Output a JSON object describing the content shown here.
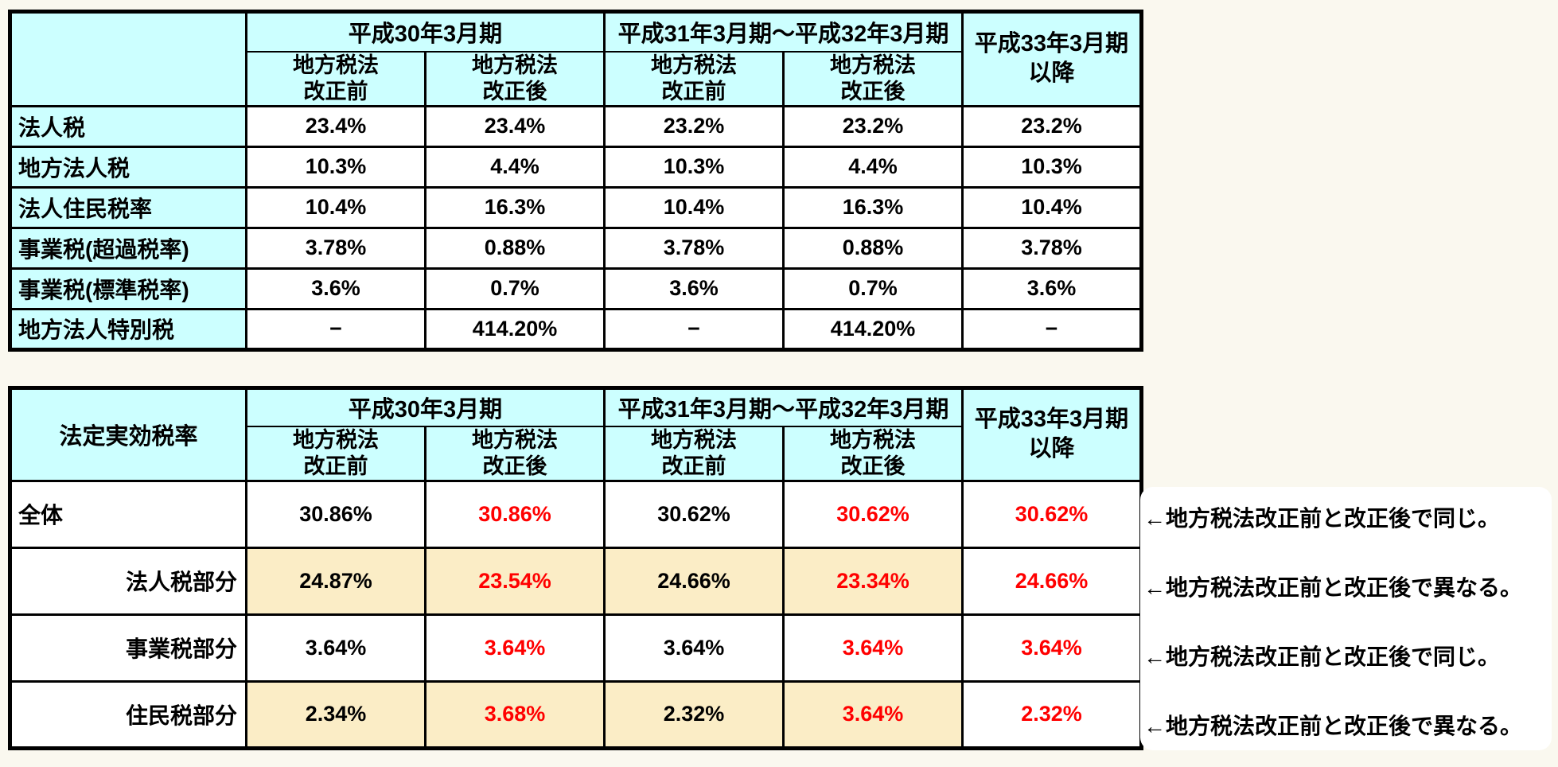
{
  "colors": {
    "page_background": "#FAF8EF",
    "header_fill": "#CCFFFF",
    "highlight_fill": "#FBEDC6",
    "changed_value_text": "#FF0000",
    "normal_text": "#000000",
    "grid_border": "#000000",
    "note_panel_fill": "#FFFFFF"
  },
  "chart_data": [
    {
      "type": "table",
      "corner_label": "",
      "groups": [
        {
          "label": "平成30年3月期",
          "subs": [
            "地方税法\n改正前",
            "地方税法\n改正後"
          ]
        },
        {
          "label": "平成31年3月期～平成32年3月期",
          "subs": [
            "地方税法\n改正前",
            "地方税法\n改正後"
          ]
        }
      ],
      "last_col_label": "平成33年3月期\n以降",
      "rows": [
        {
          "label": "法人税",
          "values": [
            "23.4%",
            "23.4%",
            "23.2%",
            "23.2%",
            "23.2%"
          ]
        },
        {
          "label": "地方法人税",
          "values": [
            "10.3%",
            "4.4%",
            "10.3%",
            "4.4%",
            "10.3%"
          ]
        },
        {
          "label": "法人住民税率",
          "values": [
            "10.4%",
            "16.3%",
            "10.4%",
            "16.3%",
            "10.4%"
          ]
        },
        {
          "label": "事業税(超過税率)",
          "values": [
            "3.78%",
            "0.88%",
            "3.78%",
            "0.88%",
            "3.78%"
          ]
        },
        {
          "label": "事業税(標準税率)",
          "values": [
            "3.6%",
            "0.7%",
            "3.6%",
            "0.7%",
            "3.6%"
          ]
        },
        {
          "label": "地方法人特別税",
          "values": [
            "−",
            "414.20%",
            "−",
            "414.20%",
            "−"
          ]
        }
      ]
    },
    {
      "type": "table",
      "corner_label": "法定実効税率",
      "groups": [
        {
          "label": "平成30年3月期",
          "subs": [
            "地方税法\n改正前",
            "地方税法\n改正後"
          ]
        },
        {
          "label": "平成31年3月期～平成32年3月期",
          "subs": [
            "地方税法\n改正前",
            "地方税法\n改正後"
          ]
        }
      ],
      "last_col_label": "平成33年3月期\n以降",
      "rows": [
        {
          "label": "全体",
          "align": "left",
          "cells": [
            {
              "t": "30.86%",
              "red": false,
              "hl": false
            },
            {
              "t": "30.86%",
              "red": true,
              "hl": false
            },
            {
              "t": "30.62%",
              "red": false,
              "hl": false
            },
            {
              "t": "30.62%",
              "red": true,
              "hl": false
            },
            {
              "t": "30.62%",
              "red": true,
              "hl": false
            }
          ],
          "note": "←地方税法改正前と改正後で同じ。"
        },
        {
          "label": "法人税部分",
          "align": "right",
          "cells": [
            {
              "t": "24.87%",
              "red": false,
              "hl": true
            },
            {
              "t": "23.54%",
              "red": true,
              "hl": true
            },
            {
              "t": "24.66%",
              "red": false,
              "hl": true
            },
            {
              "t": "23.34%",
              "red": true,
              "hl": true
            },
            {
              "t": "24.66%",
              "red": true,
              "hl": false
            }
          ],
          "note": "←地方税法改正前と改正後で異なる。"
        },
        {
          "label": "事業税部分",
          "align": "right",
          "cells": [
            {
              "t": "3.64%",
              "red": false,
              "hl": false
            },
            {
              "t": "3.64%",
              "red": true,
              "hl": false
            },
            {
              "t": "3.64%",
              "red": false,
              "hl": false
            },
            {
              "t": "3.64%",
              "red": true,
              "hl": false
            },
            {
              "t": "3.64%",
              "red": true,
              "hl": false
            }
          ],
          "note": "←地方税法改正前と改正後で同じ。"
        },
        {
          "label": "住民税部分",
          "align": "right",
          "cells": [
            {
              "t": "2.34%",
              "red": false,
              "hl": true
            },
            {
              "t": "3.68%",
              "red": true,
              "hl": true
            },
            {
              "t": "2.32%",
              "red": false,
              "hl": true
            },
            {
              "t": "3.64%",
              "red": true,
              "hl": true
            },
            {
              "t": "2.32%",
              "red": true,
              "hl": false
            }
          ],
          "note": "←地方税法改正前と改正後で異なる。"
        }
      ]
    }
  ]
}
